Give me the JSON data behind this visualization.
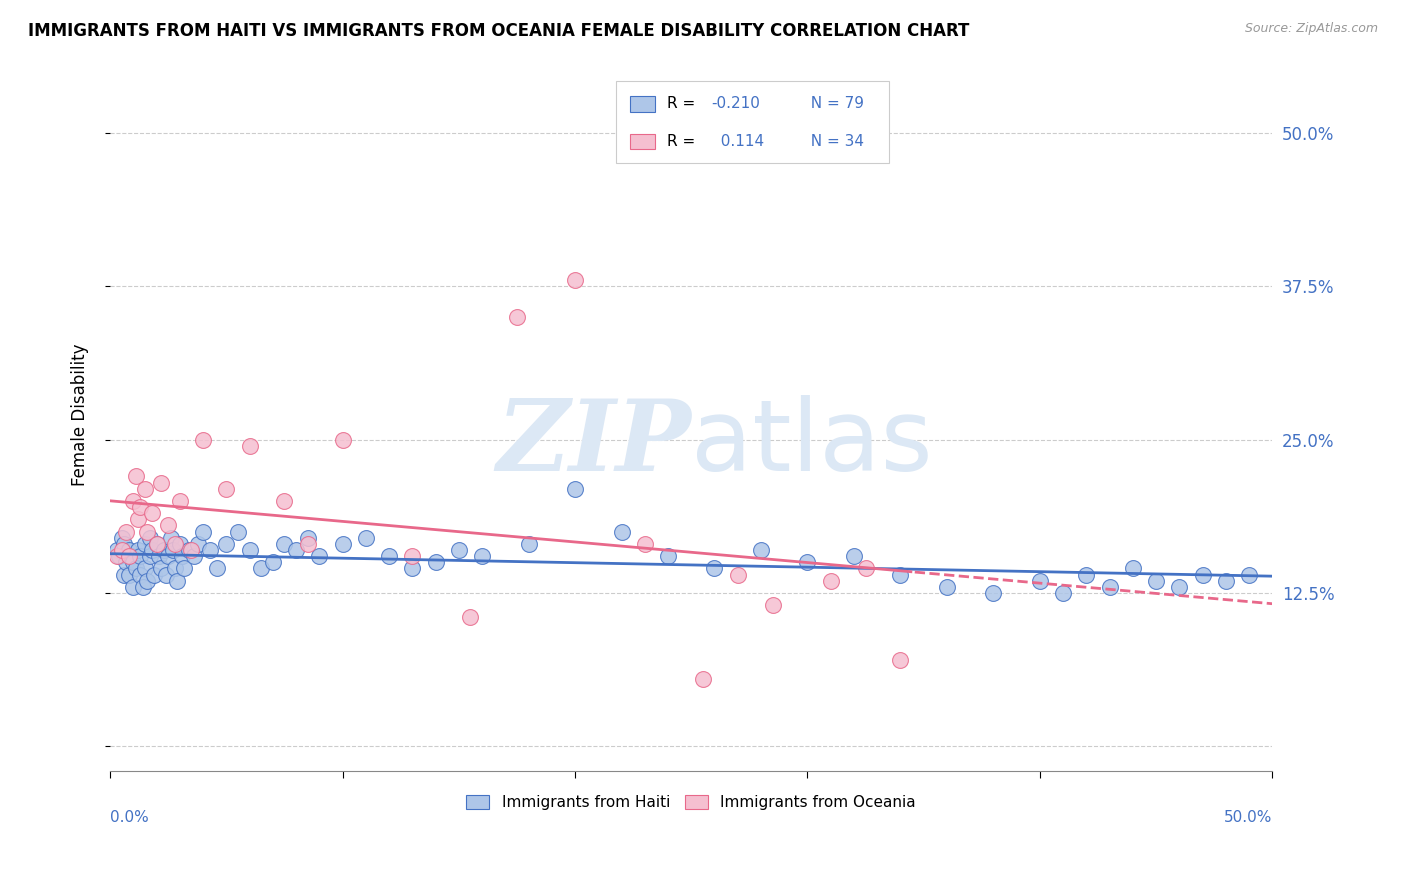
{
  "title": "IMMIGRANTS FROM HAITI VS IMMIGRANTS FROM OCEANIA FEMALE DISABILITY CORRELATION CHART",
  "source": "Source: ZipAtlas.com",
  "ylabel": "Female Disability",
  "yticks": [
    0.0,
    0.125,
    0.25,
    0.375,
    0.5
  ],
  "ytick_labels": [
    "",
    "12.5%",
    "25.0%",
    "37.5%",
    "50.0%"
  ],
  "xlim": [
    0.0,
    0.5
  ],
  "ylim": [
    -0.02,
    0.56
  ],
  "haiti_R": -0.21,
  "haiti_N": 79,
  "oceania_R": 0.114,
  "oceania_N": 34,
  "haiti_color": "#aec6e8",
  "oceania_color": "#f5bfd0",
  "haiti_line_color": "#4472C4",
  "oceania_line_color": "#e8688a",
  "background_color": "#ffffff",
  "watermark_color": "#dce8f5",
  "legend_label_haiti": "Immigrants from Haiti",
  "legend_label_oceania": "Immigrants from Oceania",
  "haiti_x": [
    0.003,
    0.004,
    0.005,
    0.006,
    0.006,
    0.007,
    0.008,
    0.008,
    0.009,
    0.01,
    0.01,
    0.011,
    0.012,
    0.013,
    0.013,
    0.014,
    0.015,
    0.015,
    0.016,
    0.017,
    0.017,
    0.018,
    0.019,
    0.02,
    0.021,
    0.022,
    0.023,
    0.024,
    0.025,
    0.026,
    0.027,
    0.028,
    0.029,
    0.03,
    0.031,
    0.032,
    0.034,
    0.036,
    0.038,
    0.04,
    0.043,
    0.046,
    0.05,
    0.055,
    0.06,
    0.065,
    0.07,
    0.075,
    0.08,
    0.085,
    0.09,
    0.1,
    0.11,
    0.12,
    0.13,
    0.14,
    0.15,
    0.16,
    0.18,
    0.2,
    0.22,
    0.24,
    0.26,
    0.28,
    0.3,
    0.32,
    0.34,
    0.36,
    0.38,
    0.4,
    0.41,
    0.42,
    0.43,
    0.44,
    0.45,
    0.46,
    0.47,
    0.48,
    0.49
  ],
  "haiti_y": [
    0.16,
    0.155,
    0.17,
    0.14,
    0.165,
    0.15,
    0.16,
    0.14,
    0.155,
    0.15,
    0.13,
    0.145,
    0.16,
    0.14,
    0.155,
    0.13,
    0.165,
    0.145,
    0.135,
    0.155,
    0.17,
    0.16,
    0.14,
    0.165,
    0.155,
    0.145,
    0.16,
    0.14,
    0.155,
    0.17,
    0.16,
    0.145,
    0.135,
    0.165,
    0.155,
    0.145,
    0.16,
    0.155,
    0.165,
    0.175,
    0.16,
    0.145,
    0.165,
    0.175,
    0.16,
    0.145,
    0.15,
    0.165,
    0.16,
    0.17,
    0.155,
    0.165,
    0.17,
    0.155,
    0.145,
    0.15,
    0.16,
    0.155,
    0.165,
    0.21,
    0.175,
    0.155,
    0.145,
    0.16,
    0.15,
    0.155,
    0.14,
    0.13,
    0.125,
    0.135,
    0.125,
    0.14,
    0.13,
    0.145,
    0.135,
    0.13,
    0.14,
    0.135,
    0.14
  ],
  "oceania_x": [
    0.003,
    0.005,
    0.007,
    0.008,
    0.01,
    0.011,
    0.012,
    0.013,
    0.015,
    0.016,
    0.018,
    0.02,
    0.022,
    0.025,
    0.028,
    0.03,
    0.035,
    0.04,
    0.05,
    0.06,
    0.075,
    0.085,
    0.1,
    0.13,
    0.155,
    0.175,
    0.2,
    0.23,
    0.255,
    0.27,
    0.285,
    0.31,
    0.325,
    0.34
  ],
  "oceania_y": [
    0.155,
    0.16,
    0.175,
    0.155,
    0.2,
    0.22,
    0.185,
    0.195,
    0.21,
    0.175,
    0.19,
    0.165,
    0.215,
    0.18,
    0.165,
    0.2,
    0.16,
    0.25,
    0.21,
    0.245,
    0.2,
    0.165,
    0.25,
    0.155,
    0.105,
    0.35,
    0.38,
    0.165,
    0.055,
    0.14,
    0.115,
    0.135,
    0.145,
    0.07
  ]
}
